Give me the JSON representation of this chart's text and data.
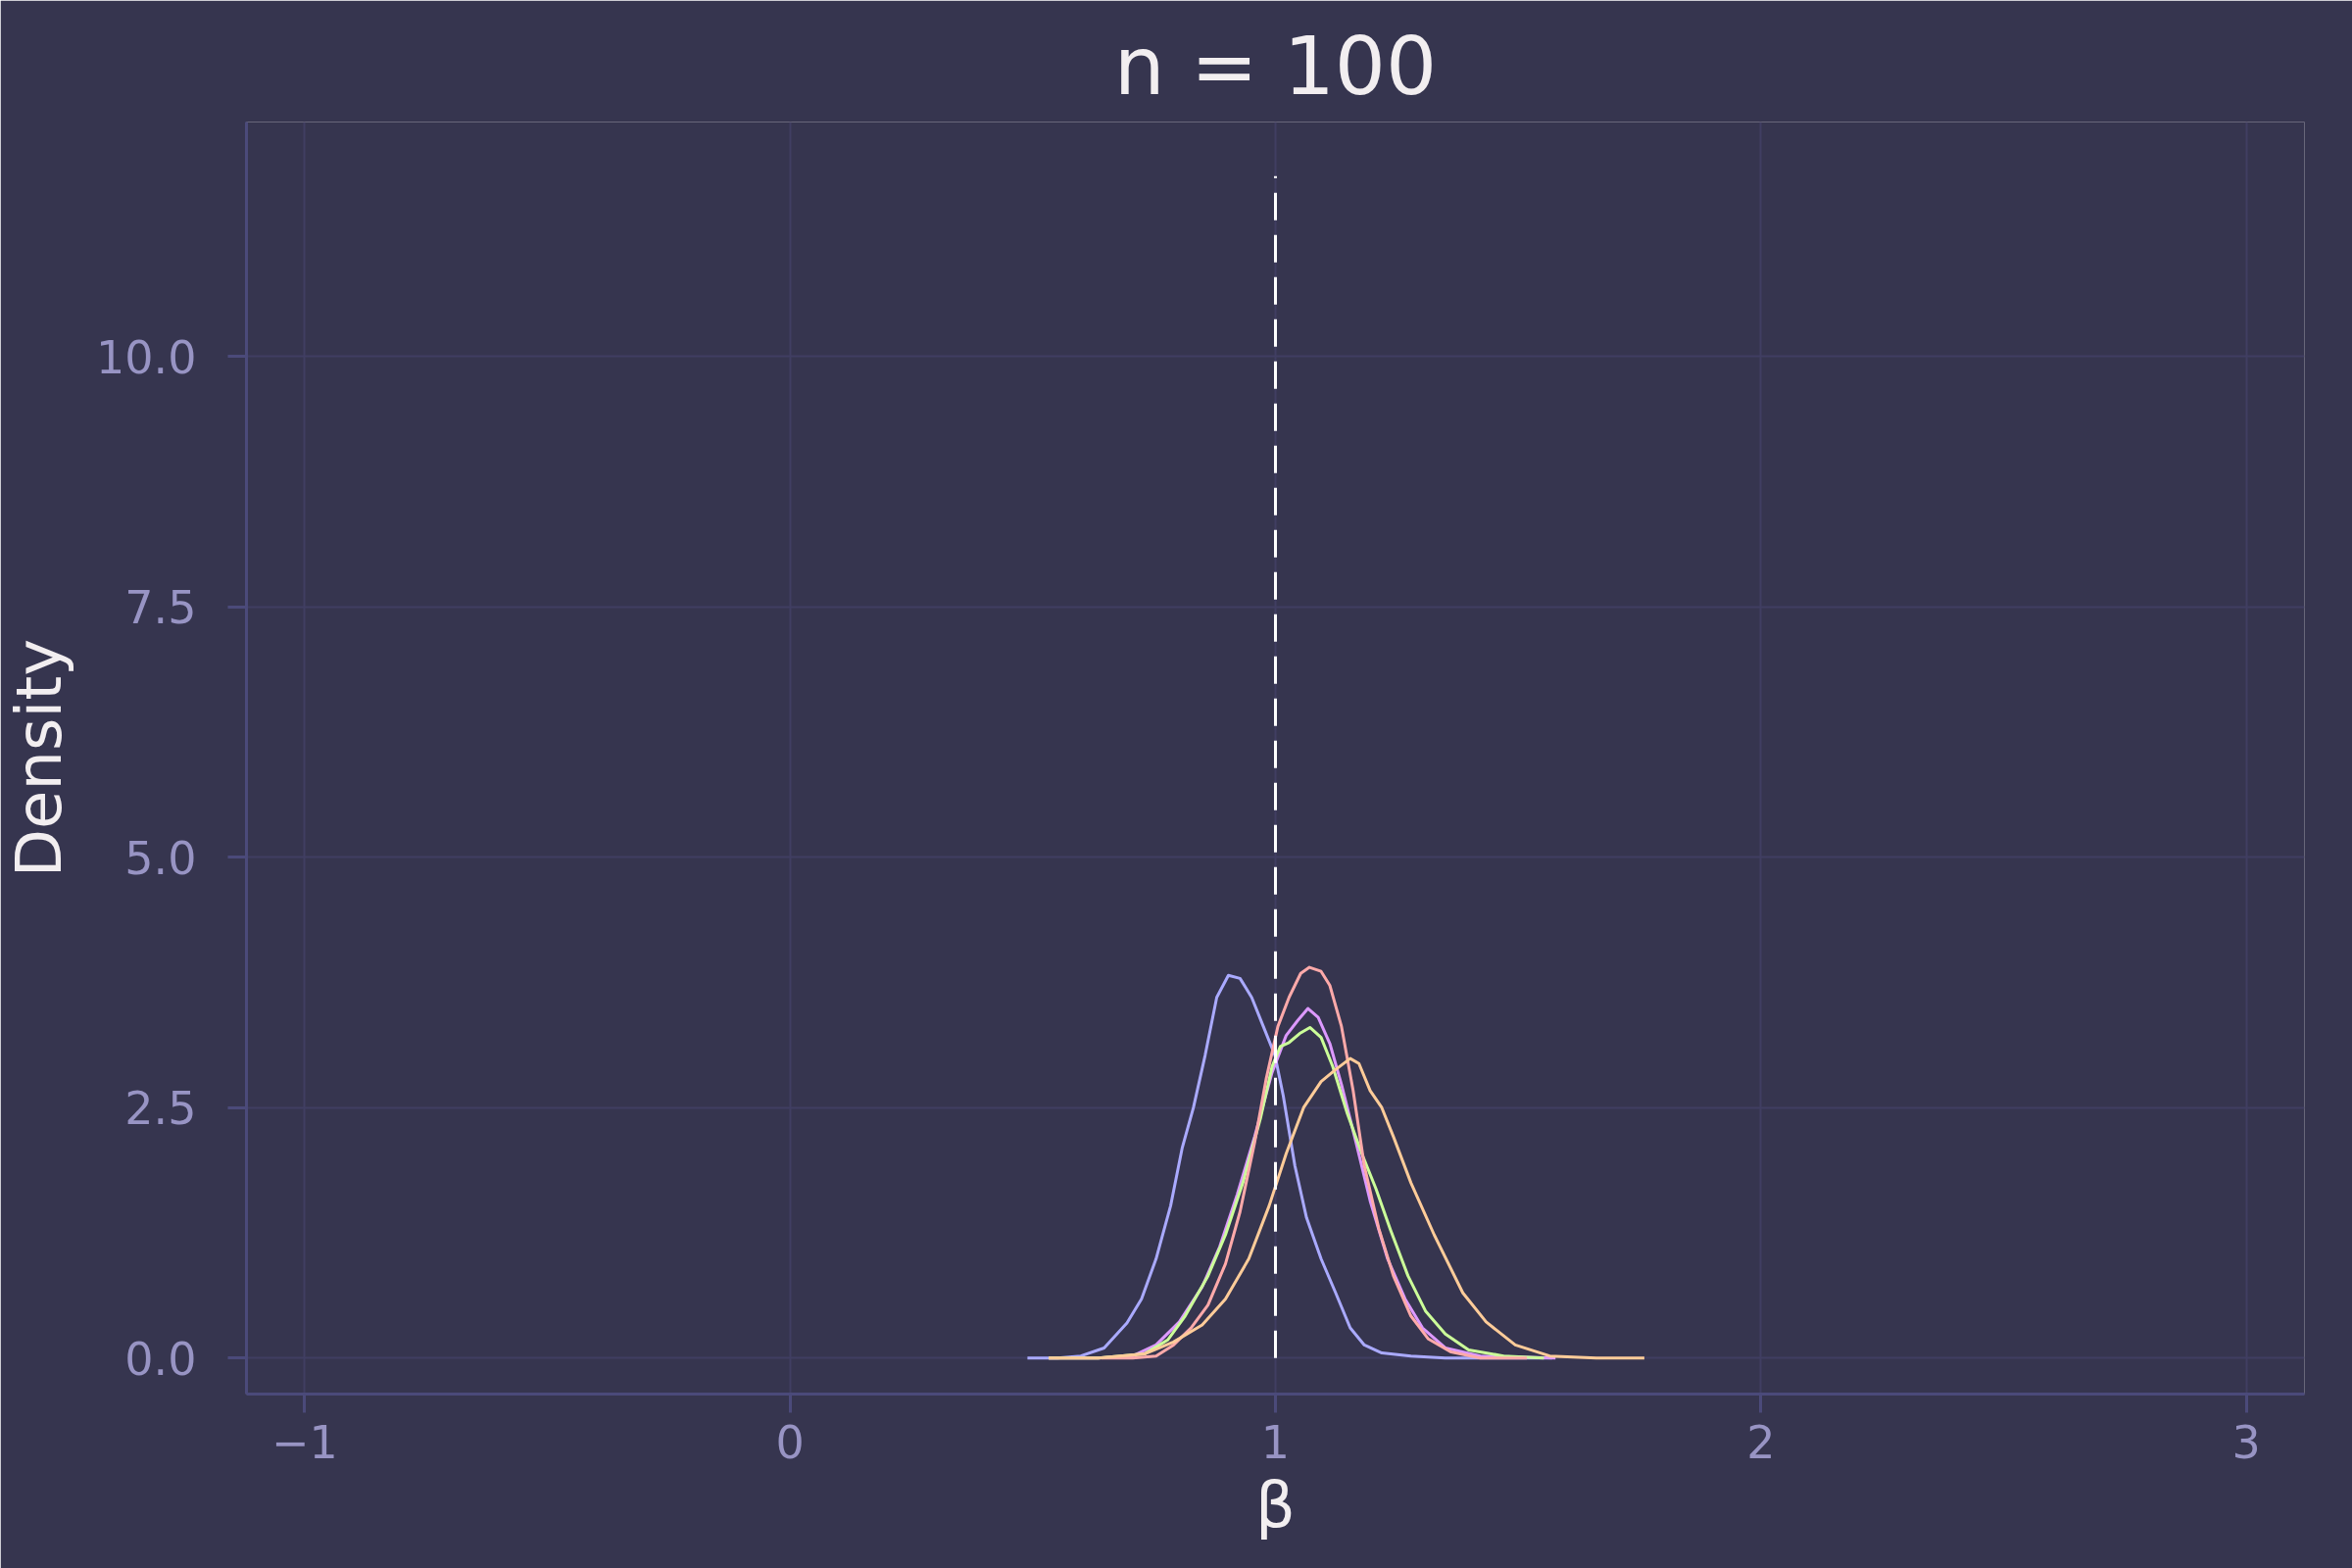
{
  "chart_data": {
    "type": "line",
    "title": "n = 100",
    "xlabel": "β",
    "ylabel": "Density",
    "xlim": [
      -1.12,
      3.12
    ],
    "ylim": [
      -0.36,
      12.34
    ],
    "xticks": [
      {
        "value": -1,
        "label": "−1"
      },
      0,
      1,
      2,
      3
    ],
    "yticks": [
      {
        "value": 0,
        "label": "0.0"
      },
      2.5,
      {
        "value": 5,
        "label": "5.0"
      },
      7.5,
      {
        "value": 10,
        "label": "10.0"
      }
    ],
    "grid": true,
    "line_style": "solid",
    "series": [
      {
        "color": "#aaaaff",
        "x": [
          0.489,
          0.551,
          0.599,
          0.647,
          0.694,
          0.724,
          0.754,
          0.784,
          0.808,
          0.831,
          0.855,
          0.879,
          0.903,
          0.927,
          0.951,
          0.975,
          0.999,
          1.016,
          1.04,
          1.064,
          1.094,
          1.124,
          1.154,
          1.183,
          1.219,
          1.279,
          1.35,
          1.57
        ],
        "values": [
          0,
          0,
          0.02,
          0.1,
          0.35,
          0.59,
          0.99,
          1.52,
          2.1,
          2.5,
          3.02,
          3.6,
          3.82,
          3.79,
          3.6,
          3.31,
          3.02,
          2.62,
          1.92,
          1.4,
          0.99,
          0.65,
          0.3,
          0.13,
          0.05,
          0.02,
          0,
          0
        ]
      },
      {
        "color": "#dd99ff",
        "x": [
          0.533,
          0.635,
          0.706,
          0.754,
          0.802,
          0.849,
          0.885,
          0.921,
          0.957,
          0.993,
          1.022,
          1.046,
          1.067,
          1.088,
          1.112,
          1.136,
          1.166,
          1.195,
          1.231,
          1.267,
          1.303,
          1.35,
          1.422,
          1.577
        ],
        "values": [
          0,
          0,
          0.02,
          0.13,
          0.36,
          0.71,
          1.11,
          1.63,
          2.21,
          2.85,
          3.22,
          3.37,
          3.49,
          3.4,
          3.14,
          2.73,
          2.15,
          1.57,
          0.99,
          0.59,
          0.3,
          0.1,
          0.02,
          0
        ]
      },
      {
        "color": "#ccff99",
        "x": [
          0.533,
          0.635,
          0.73,
          0.778,
          0.814,
          0.861,
          0.897,
          0.933,
          0.969,
          0.993,
          1.01,
          1.028,
          1.05,
          1.071,
          1.094,
          1.118,
          1.148,
          1.178,
          1.207,
          1.237,
          1.273,
          1.309,
          1.35,
          1.398,
          1.47,
          1.553
        ],
        "values": [
          0,
          0,
          0.04,
          0.18,
          0.42,
          0.82,
          1.23,
          1.75,
          2.39,
          2.91,
          3.11,
          3.15,
          3.24,
          3.3,
          3.2,
          2.91,
          2.44,
          2.04,
          1.69,
          1.28,
          0.82,
          0.47,
          0.24,
          0.08,
          0.02,
          0
        ]
      },
      {
        "color": "#ffaaaa",
        "x": [
          0.641,
          0.706,
          0.754,
          0.79,
          0.826,
          0.861,
          0.897,
          0.927,
          0.957,
          0.981,
          1.005,
          1.028,
          1.052,
          1.07,
          1.094,
          1.112,
          1.136,
          1.16,
          1.183,
          1.213,
          1.243,
          1.279,
          1.315,
          1.362,
          1.422,
          1.518
        ],
        "values": [
          0,
          0,
          0.02,
          0.13,
          0.3,
          0.53,
          0.94,
          1.46,
          2.15,
          2.79,
          3.31,
          3.6,
          3.84,
          3.9,
          3.86,
          3.72,
          3.31,
          2.67,
          1.92,
          1.29,
          0.82,
          0.42,
          0.19,
          0.06,
          0,
          0
        ]
      },
      {
        "color": "#ffcc99",
        "x": [
          0.533,
          0.635,
          0.73,
          0.79,
          0.849,
          0.897,
          0.945,
          0.987,
          1.022,
          1.058,
          1.094,
          1.124,
          1.154,
          1.172,
          1.195,
          1.219,
          1.243,
          1.279,
          1.327,
          1.386,
          1.434,
          1.494,
          1.565,
          1.661,
          1.76
        ],
        "values": [
          0,
          0,
          0.04,
          0.16,
          0.33,
          0.59,
          0.99,
          1.52,
          2.04,
          2.5,
          2.76,
          2.88,
          2.99,
          2.94,
          2.67,
          2.5,
          2.21,
          1.75,
          1.23,
          0.65,
          0.36,
          0.13,
          0.02,
          0,
          0
        ]
      },
      {
        "color": "#ffffff",
        "line_style": "dashed",
        "x": [
          1,
          1
        ],
        "values": [
          0,
          11.8
        ]
      }
    ]
  }
}
